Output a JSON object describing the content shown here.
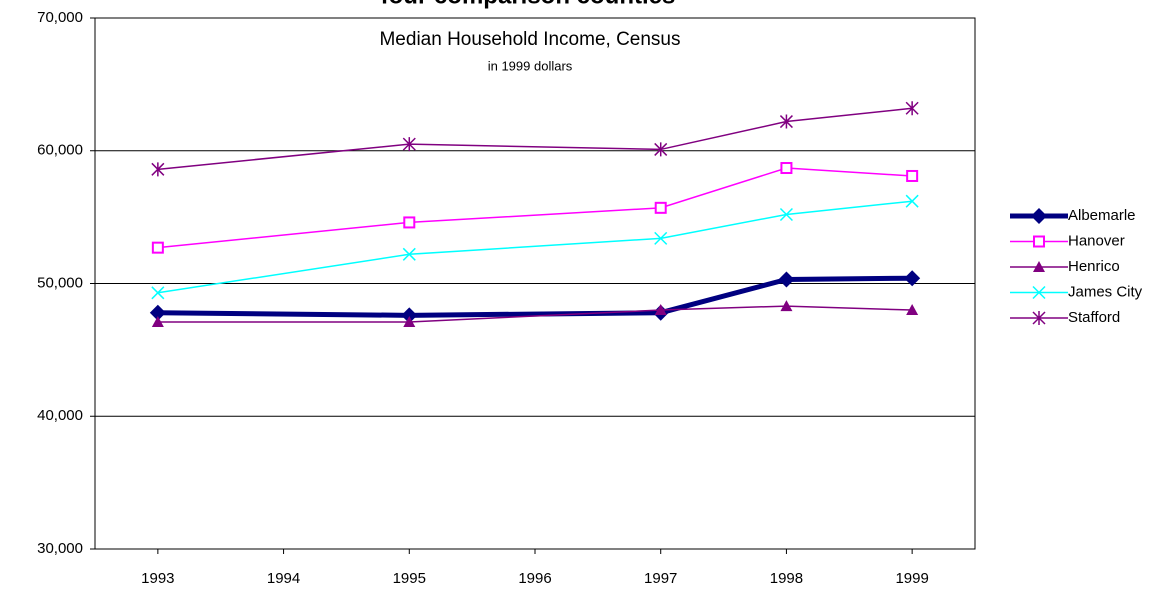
{
  "chart_data": {
    "type": "line",
    "title": "four comparison counties",
    "subtitle": "Median Household Income, Census",
    "note": "in 1999 dollars",
    "x": [
      1993,
      1995,
      1997,
      1998,
      1999
    ],
    "xlim": [
      1992.5,
      1999.5
    ],
    "xticks": [
      1993,
      1994,
      1995,
      1996,
      1997,
      1998,
      1999
    ],
    "ylim": [
      30000,
      70000
    ],
    "yticks": [
      {
        "value": 30000,
        "label": "30,000"
      },
      {
        "value": 40000,
        "label": "40,000"
      },
      {
        "value": 50000,
        "label": "50,000"
      },
      {
        "value": 60000,
        "label": "60,000"
      },
      {
        "value": 70000,
        "label": "70,000"
      }
    ],
    "grid": true,
    "legend": "right",
    "series": [
      {
        "name": "Albemarle",
        "color": "#000080",
        "marker": "diamond",
        "line_width": 5,
        "values": [
          47800,
          47600,
          47800,
          50300,
          50400
        ]
      },
      {
        "name": "Hanover",
        "color": "#ff00ff",
        "marker": "square",
        "line_width": 1.5,
        "values": [
          52700,
          54600,
          55700,
          58700,
          58100
        ]
      },
      {
        "name": "Henrico",
        "color": "#800080",
        "marker": "triangle",
        "line_width": 1.5,
        "values": [
          47100,
          47100,
          48000,
          48300,
          48000
        ]
      },
      {
        "name": "James City",
        "color": "#00ffff",
        "marker": "x",
        "line_width": 1.5,
        "values": [
          49300,
          52200,
          53400,
          55200,
          56200
        ]
      },
      {
        "name": "Stafford",
        "color": "#800080",
        "marker": "star",
        "line_width": 1.5,
        "values": [
          58600,
          60500,
          60100,
          62200,
          63200
        ]
      }
    ]
  }
}
